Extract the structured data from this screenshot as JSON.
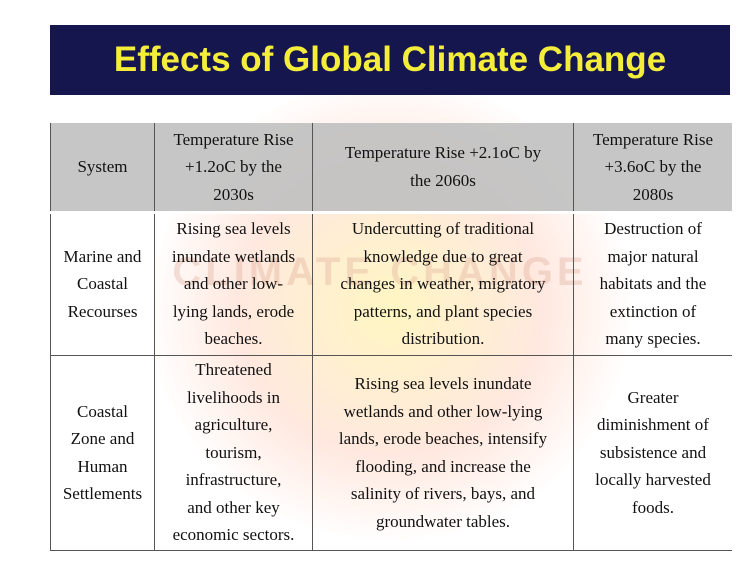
{
  "header": {
    "title": "Effects of Global Climate Change"
  },
  "watermark": "CLIMATE CHANGE",
  "table": {
    "rows": [
      [
        [
          "System"
        ],
        [
          "Temperature Rise",
          "+1.2oC by the",
          "2030s"
        ],
        [
          "Temperature Rise +2.1oC by",
          "the 2060s"
        ],
        [
          "Temperature Rise",
          "+3.6oC by the",
          "2080s"
        ]
      ],
      [
        [
          "Marine and",
          "Coastal",
          "Recourses"
        ],
        [
          "Rising sea levels",
          "inundate wetlands",
          "and other low-",
          "lying lands, erode",
          "beaches."
        ],
        [
          "Undercutting of traditional",
          "knowledge due to great",
          "changes in weather, migratory",
          "patterns, and plant species",
          "distribution."
        ],
        [
          "Destruction of",
          "major natural",
          "habitats and the",
          "extinction of",
          "many species."
        ]
      ],
      [
        [
          "Coastal",
          "Zone and",
          "Human",
          "Settlements"
        ],
        [
          "Threatened",
          "livelihoods in",
          "agriculture,",
          "tourism,",
          "infrastructure,",
          "and other key",
          "economic sectors."
        ],
        [
          "Rising sea levels inundate",
          "wetlands and other low-lying",
          "lands, erode beaches, intensify",
          "flooding, and increase the",
          "salinity of rivers, bays, and",
          "groundwater tables."
        ],
        [
          "Greater",
          "diminishment of",
          "subsistence and",
          "locally harvested",
          "foods."
        ]
      ]
    ]
  }
}
